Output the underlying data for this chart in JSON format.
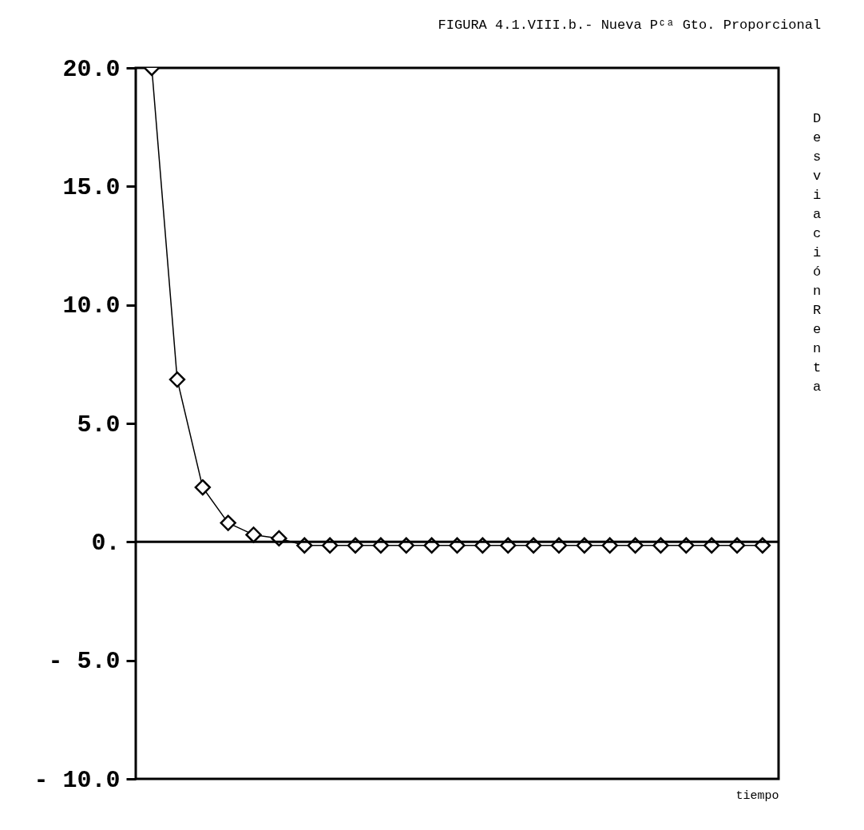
{
  "chart_data": {
    "type": "line",
    "title": "FIGURA 4.1.VIII.b.- Nueva Pᶜᵃ Gto. Proporcional",
    "xlabel": "tiempo",
    "ylabel": "Desviación Renta",
    "categories": [
      null,
      null,
      null,
      null,
      null,
      null,
      null,
      null,
      null,
      null,
      null,
      null,
      null,
      null,
      null,
      null,
      null,
      null,
      null,
      null,
      null,
      null,
      null,
      null,
      null
    ],
    "series": [
      {
        "color": "#000000",
        "values": [
          20,
          6.85,
          2.3,
          0.8,
          0.3,
          0.15,
          -0.15,
          -0.15,
          -0.15,
          -0.15,
          -0.15,
          -0.15,
          -0.15,
          -0.15,
          -0.15,
          -0.15,
          -0.15,
          -0.15,
          -0.15,
          -0.15,
          -0.15,
          -0.15,
          -0.15,
          -0.15,
          -0.15
        ]
      }
    ],
    "ylim": [
      -10,
      20
    ],
    "yticks": [
      {
        "value": 20,
        "label": "20.0"
      },
      {
        "value": 15,
        "label": "15.0"
      },
      {
        "value": 10,
        "label": "10.0"
      },
      {
        "value": 5,
        "label": "5.0"
      },
      {
        "value": 0,
        "label": "0."
      },
      {
        "value": -5,
        "label": "- 5.0"
      },
      {
        "value": -10,
        "label": "- 10.0"
      }
    ],
    "ref_lines": [
      {
        "axis": "y",
        "value": 0,
        "color": "#000000"
      }
    ],
    "marker": "diamond",
    "line_style": "solid",
    "grid": false,
    "tick_labels": "y"
  }
}
